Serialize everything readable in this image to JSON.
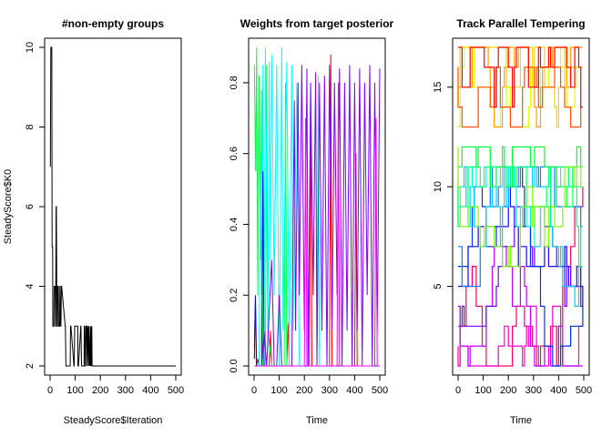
{
  "chart_data": [
    {
      "type": "line",
      "title": "#non-empty groups",
      "xlabel": "SteadyScore$Iteration",
      "ylabel": "SteadyScore$K0",
      "xlim": [
        0,
        500
      ],
      "ylim": [
        2,
        10
      ],
      "xticks": [
        "0",
        "100",
        "200",
        "300",
        "400",
        "500"
      ],
      "yticks": [
        "2",
        "4",
        "6",
        "8",
        "10"
      ],
      "series": [
        {
          "color": "#000000",
          "x": [
            1,
            3,
            4,
            7,
            8,
            10,
            11,
            15,
            16,
            20,
            21,
            22,
            24,
            25,
            27,
            29,
            30,
            33,
            34,
            38,
            39,
            40,
            42,
            43,
            45,
            46,
            60,
            61,
            63,
            80,
            81,
            83,
            95,
            96,
            98,
            110,
            111,
            113,
            122,
            123,
            125,
            135,
            136,
            138,
            140,
            141,
            143,
            146,
            147,
            150,
            153,
            154,
            157,
            160,
            161,
            163,
            164,
            166,
            167,
            170,
            500
          ],
          "y": [
            7,
            10,
            10,
            10,
            5,
            5,
            3,
            3,
            4,
            4,
            3,
            3,
            6,
            6,
            3,
            3,
            4,
            4,
            3,
            3,
            4,
            4,
            3,
            3,
            4,
            4,
            3,
            3,
            2,
            2,
            3,
            3,
            2,
            2,
            3,
            3,
            2,
            2,
            3,
            3,
            2,
            2,
            3,
            3,
            2,
            2,
            3,
            3,
            2,
            3,
            2,
            3,
            2,
            3,
            2,
            3,
            2,
            3,
            2,
            2,
            2
          ]
        }
      ]
    },
    {
      "type": "line",
      "title": "Weights from target posterior",
      "xlabel": "Time",
      "ylabel": "",
      "xlim": [
        0,
        500
      ],
      "ylim": [
        0,
        0.9
      ],
      "xticks": [
        "0",
        "100",
        "200",
        "300",
        "400",
        "500"
      ],
      "yticks": [
        "0.0",
        "0.2",
        "0.4",
        "0.6",
        "0.8"
      ],
      "series": [
        {
          "color": "#ff0000",
          "segments": [
            [
              1,
              0.05
            ],
            [
              5,
              0.18
            ],
            [
              9,
              0.0
            ],
            [
              15,
              0.02
            ],
            [
              20,
              0.0
            ],
            [
              60,
              0.0
            ],
            [
              65,
              0.1
            ],
            [
              70,
              0.0
            ],
            [
              130,
              0.0
            ],
            [
              135,
              0.12
            ],
            [
              140,
              0.0
            ],
            [
              220,
              0.0
            ],
            [
              225,
              0.78
            ],
            [
              230,
              0.0
            ],
            [
              300,
              0.0
            ],
            [
              305,
              0.88
            ],
            [
              310,
              0.0
            ],
            [
              400,
              0.0
            ],
            [
              405,
              0.6
            ],
            [
              410,
              0.0
            ],
            [
              500,
              0.0
            ]
          ]
        },
        {
          "color": "#00ff40",
          "segments": [
            [
              1,
              0.85
            ],
            [
              6,
              0.55
            ],
            [
              10,
              0.9
            ],
            [
              15,
              0.2
            ],
            [
              20,
              0.82
            ],
            [
              25,
              0.3
            ],
            [
              30,
              0.78
            ],
            [
              35,
              0.0
            ],
            [
              45,
              0.0
            ],
            [
              50,
              0.85
            ],
            [
              55,
              0.1
            ],
            [
              70,
              0.0
            ],
            [
              120,
              0.0
            ],
            [
              125,
              0.8
            ],
            [
              130,
              0.0
            ],
            [
              500,
              0.0
            ]
          ]
        },
        {
          "color": "#00ffff",
          "segments": [
            [
              1,
              0.0
            ],
            [
              20,
              0.0
            ],
            [
              25,
              0.6
            ],
            [
              30,
              0.2
            ],
            [
              35,
              0.85
            ],
            [
              40,
              0.1
            ],
            [
              45,
              0.9
            ],
            [
              55,
              0.05
            ],
            [
              60,
              0.86
            ],
            [
              65,
              0.3
            ],
            [
              70,
              0.88
            ],
            [
              80,
              0.2
            ],
            [
              90,
              0.85
            ],
            [
              100,
              0.0
            ],
            [
              110,
              0.9
            ],
            [
              115,
              0.1
            ],
            [
              130,
              0.86
            ],
            [
              140,
              0.0
            ],
            [
              150,
              0.85
            ],
            [
              155,
              0.1
            ],
            [
              170,
              0.8
            ],
            [
              180,
              0.0
            ],
            [
              250,
              0.0
            ],
            [
              255,
              0.82
            ],
            [
              260,
              0.0
            ],
            [
              500,
              0.0
            ]
          ]
        },
        {
          "color": "#0000ff",
          "segments": [
            [
              1,
              0.02
            ],
            [
              5,
              0.2
            ],
            [
              10,
              0.0
            ],
            [
              30,
              0.0
            ],
            [
              35,
              0.55
            ],
            [
              40,
              0.0
            ],
            [
              500,
              0.0
            ]
          ]
        },
        {
          "color": "#8000ff",
          "segments": [
            [
              1,
              0.0
            ],
            [
              30,
              0.0
            ],
            [
              40,
              0.1
            ],
            [
              50,
              0.0
            ],
            [
              70,
              0.3
            ],
            [
              80,
              0.0
            ],
            [
              90,
              0.0
            ],
            [
              100,
              0.2
            ],
            [
              110,
              0.0
            ],
            [
              150,
              0.0
            ],
            [
              160,
              0.75
            ],
            [
              165,
              0.1
            ],
            [
              175,
              0.8
            ],
            [
              180,
              0.2
            ],
            [
              190,
              0.85
            ],
            [
              200,
              0.1
            ],
            [
              210,
              0.84
            ],
            [
              215,
              0.0
            ],
            [
              225,
              0.8
            ],
            [
              235,
              0.2
            ],
            [
              245,
              0.83
            ],
            [
              250,
              0.0
            ],
            [
              260,
              0.8
            ],
            [
              270,
              0.1
            ],
            [
              280,
              0.82
            ],
            [
              290,
              0.0
            ],
            [
              300,
              0.85
            ],
            [
              310,
              0.1
            ],
            [
              320,
              0.8
            ],
            [
              330,
              0.2
            ],
            [
              340,
              0.84
            ],
            [
              350,
              0.0
            ],
            [
              360,
              0.8
            ],
            [
              370,
              0.1
            ],
            [
              380,
              0.85
            ],
            [
              390,
              0.0
            ],
            [
              400,
              0.8
            ],
            [
              410,
              0.1
            ],
            [
              420,
              0.84
            ],
            [
              430,
              0.0
            ],
            [
              440,
              0.8
            ],
            [
              450,
              0.2
            ],
            [
              460,
              0.85
            ],
            [
              470,
              0.0
            ],
            [
              480,
              0.8
            ],
            [
              490,
              0.1
            ],
            [
              500,
              0.84
            ]
          ]
        },
        {
          "color": "#ff00ff",
          "segments": [
            [
              1,
              0.0
            ],
            [
              200,
              0.0
            ],
            [
              205,
              0.7
            ],
            [
              210,
              0.0
            ],
            [
              330,
              0.0
            ],
            [
              335,
              0.8
            ],
            [
              340,
              0.0
            ],
            [
              480,
              0.0
            ],
            [
              485,
              0.7
            ],
            [
              490,
              0.0
            ],
            [
              500,
              0.0
            ]
          ]
        }
      ]
    },
    {
      "type": "line",
      "title": "Track Parallel Tempering",
      "xlabel": "Time",
      "ylabel": "",
      "xlim": [
        0,
        500
      ],
      "ylim": [
        1,
        17
      ],
      "xticks": [
        "0",
        "100",
        "200",
        "300",
        "400",
        "500"
      ],
      "yticks": [
        "5",
        "10",
        "15"
      ],
      "palette": [
        "#ff0000",
        "#ff5000",
        "#ffa000",
        "#ffd000",
        "#e0ff00",
        "#80ff00",
        "#00ff40",
        "#00ff80",
        "#00ffd0",
        "#00d0ff",
        "#0080ff",
        "#0030ff",
        "#2000ff",
        "#7000ff",
        "#c000ff",
        "#ff00d0",
        "#ff0060"
      ]
    }
  ]
}
